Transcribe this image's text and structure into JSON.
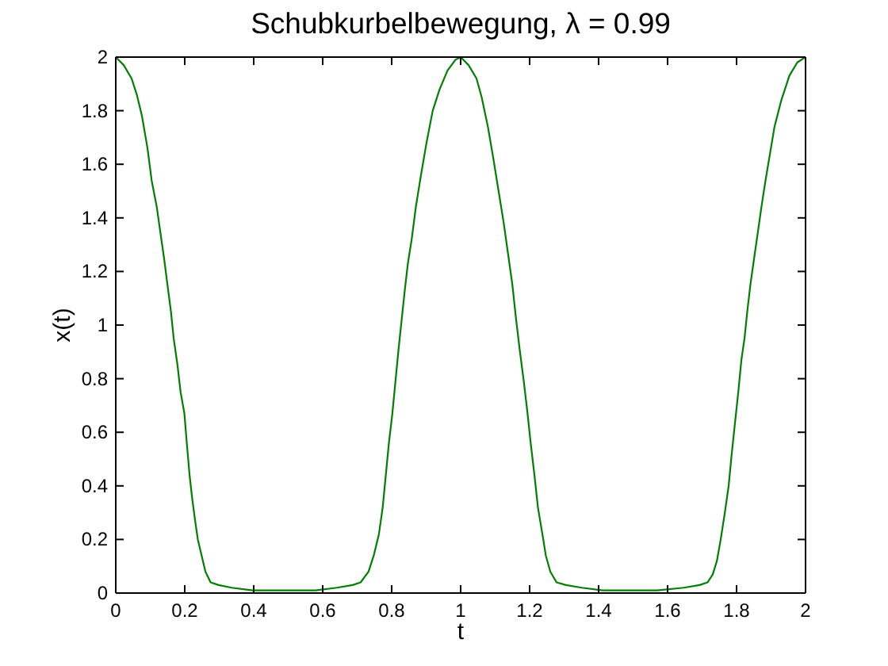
{
  "chart_data": {
    "type": "line",
    "title": "Schubkurbelbewegung, λ = 0.99",
    "xlabel": "t",
    "ylabel": "x(t)",
    "x": [
      0,
      0.023,
      0.046,
      0.061,
      0.076,
      0.092,
      0.104,
      0.119,
      0.13,
      0.14,
      0.15,
      0.16,
      0.168,
      0.179,
      0.188,
      0.199,
      0.206,
      0.214,
      0.221,
      0.229,
      0.238,
      0.249,
      0.26,
      0.275,
      0.298,
      0.336,
      0.397,
      0.458,
      0.519,
      0.58,
      0.641,
      0.687,
      0.71,
      0.733,
      0.748,
      0.763,
      0.774,
      0.783,
      0.792,
      0.802,
      0.811,
      0.82,
      0.829,
      0.838,
      0.847,
      0.858,
      0.87,
      0.885,
      0.901,
      0.919,
      0.939,
      0.962,
      0.985,
      1,
      1.023,
      1.046,
      1.061,
      1.079,
      1.095,
      1.11,
      1.125,
      1.137,
      1.15,
      1.16,
      1.171,
      1.183,
      1.194,
      1.203,
      1.214,
      1.224,
      1.237,
      1.247,
      1.26,
      1.278,
      1.305,
      1.351,
      1.412,
      1.493,
      1.57,
      1.647,
      1.693,
      1.716,
      1.731,
      1.743,
      1.754,
      1.766,
      1.777,
      1.786,
      1.795,
      1.805,
      1.814,
      1.823,
      1.831,
      1.84,
      1.851,
      1.861,
      1.872,
      1.884,
      1.897,
      1.91,
      1.93,
      1.953,
      1.976,
      2
    ],
    "series": [
      {
        "color": "#008000",
        "values": [
          2,
          1.97,
          1.92,
          1.86,
          1.78,
          1.66,
          1.54,
          1.44,
          1.34,
          1.25,
          1.15,
          1.05,
          0.95,
          0.85,
          0.75,
          0.67,
          0.56,
          0.44,
          0.36,
          0.28,
          0.2,
          0.14,
          0.08,
          0.04,
          0.03,
          0.02,
          0.01,
          0.01,
          0.01,
          0.01,
          0.02,
          0.03,
          0.04,
          0.08,
          0.14,
          0.22,
          0.32,
          0.44,
          0.56,
          0.67,
          0.79,
          0.91,
          1.02,
          1.13,
          1.23,
          1.32,
          1.44,
          1.56,
          1.68,
          1.8,
          1.88,
          1.95,
          1.99,
          2,
          1.97,
          1.92,
          1.85,
          1.74,
          1.62,
          1.5,
          1.38,
          1.27,
          1.15,
          1.03,
          0.91,
          0.79,
          0.67,
          0.56,
          0.44,
          0.32,
          0.22,
          0.14,
          0.08,
          0.04,
          0.03,
          0.02,
          0.01,
          0.01,
          0.01,
          0.02,
          0.03,
          0.04,
          0.07,
          0.12,
          0.2,
          0.3,
          0.4,
          0.52,
          0.63,
          0.75,
          0.87,
          0.95,
          1.05,
          1.15,
          1.25,
          1.34,
          1.44,
          1.54,
          1.64,
          1.74,
          1.84,
          1.93,
          1.98,
          2
        ]
      }
    ],
    "xlim": [
      0,
      2
    ],
    "xticks": [
      0,
      0.2,
      0.4,
      0.6,
      0.8,
      1,
      1.2,
      1.4,
      1.6,
      1.8,
      2
    ],
    "ylim": [
      0,
      2
    ],
    "yticks": [
      0,
      0.2,
      0.4,
      0.6,
      0.8,
      1,
      1.2,
      1.4,
      1.6,
      1.8,
      2
    ],
    "marker": "none",
    "line_style": "solid"
  }
}
